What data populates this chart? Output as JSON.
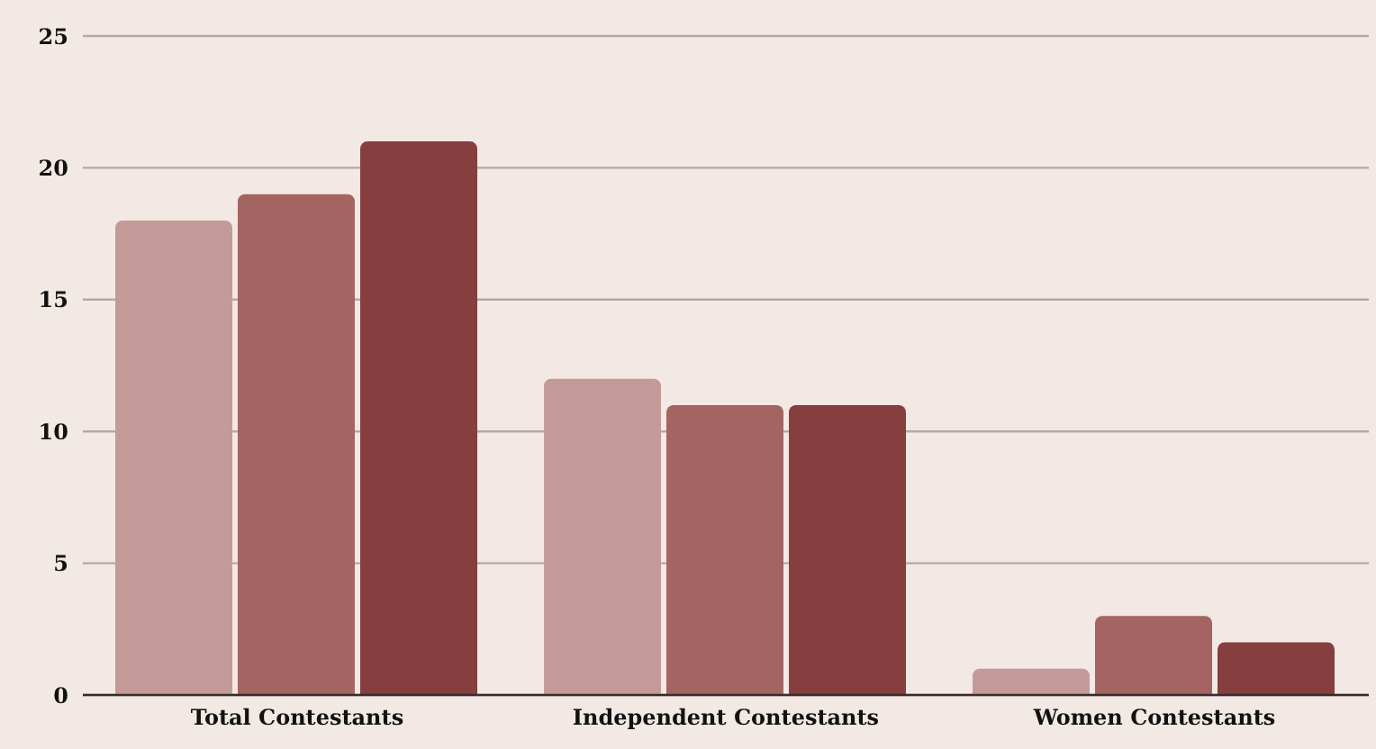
{
  "chart_data": {
    "type": "bar",
    "categories": [
      "Total Contestants",
      "Independent Contestants",
      "Women Contestants"
    ],
    "series": [
      {
        "color": "#c49a98",
        "values": [
          18,
          12,
          1
        ]
      },
      {
        "color": "#a36462",
        "values": [
          19,
          11,
          3
        ]
      },
      {
        "color": "#863e3e",
        "values": [
          21,
          11,
          2
        ]
      }
    ],
    "ylim": [
      0,
      25
    ],
    "yticks": [
      0,
      5,
      10,
      15,
      20,
      25
    ],
    "grid": "y",
    "legend": false
  }
}
